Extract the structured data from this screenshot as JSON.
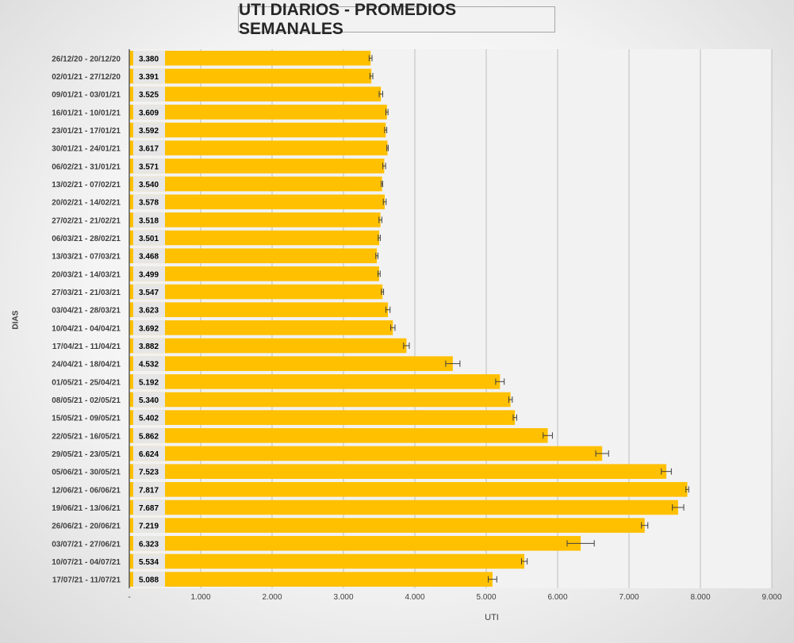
{
  "chart_data": {
    "type": "bar",
    "orientation": "horizontal",
    "title": "UTI DIARIOS - PROMEDIOS SEMANALES",
    "xlabel": "UTI",
    "ylabel": "DIAS",
    "xlim": [
      0,
      9000
    ],
    "x_ticks": [
      "-",
      "1.000",
      "2.000",
      "3.000",
      "4.000",
      "5.000",
      "6.000",
      "7.000",
      "8.000",
      "9.000"
    ],
    "bar_color": "#FFC000",
    "grid": true,
    "legend": "none",
    "categories": [
      "26/12/20 - 20/12/20",
      "02/01/21 - 27/12/20",
      "09/01/21 - 03/01/21",
      "16/01/21 - 10/01/21",
      "23/01/21 - 17/01/21",
      "30/01/21 - 24/01/21",
      "06/02/21 - 31/01/21",
      "13/02/21 - 07/02/21",
      "20/02/21 - 14/02/21",
      "27/02/21 - 21/02/21",
      "06/03/21 - 28/02/21",
      "13/03/21 - 07/03/21",
      "20/03/21 - 14/03/21",
      "27/03/21 - 21/03/21",
      "03/04/21 - 28/03/21",
      "10/04/21 - 04/04/21",
      "17/04/21 - 11/04/21",
      "24/04/21 - 18/04/21",
      "01/05/21 - 25/04/21",
      "08/05/21 - 02/05/21",
      "15/05/21 - 09/05/21",
      "22/05/21 - 16/05/21",
      "29/05/21 - 23/05/21",
      "05/06/21 - 30/05/21",
      "12/06/21 - 06/06/21",
      "19/06/21 - 13/06/21",
      "26/06/21 - 20/06/21",
      "03/07/21 - 27/06/21",
      "10/07/21 - 04/07/21",
      "17/07/21 - 11/07/21"
    ],
    "values": [
      3380,
      3391,
      3525,
      3609,
      3592,
      3617,
      3571,
      3540,
      3578,
      3518,
      3501,
      3468,
      3499,
      3547,
      3623,
      3692,
      3882,
      4532,
      5192,
      5340,
      5402,
      5862,
      6624,
      7523,
      7817,
      7687,
      7219,
      6323,
      5534,
      5088
    ],
    "value_labels": [
      "3.380",
      "3.391",
      "3.525",
      "3.609",
      "3.592",
      "3.617",
      "3.571",
      "3.540",
      "3.578",
      "3.518",
      "3.501",
      "3.468",
      "3.499",
      "3.547",
      "3.623",
      "3.692",
      "3.882",
      "4.532",
      "5.192",
      "5.340",
      "5.402",
      "5.862",
      "6.624",
      "7.523",
      "7.817",
      "7.687",
      "7.219",
      "6.323",
      "5.534",
      "5.088"
    ],
    "error_bars": [
      20,
      20,
      25,
      15,
      15,
      10,
      20,
      10,
      20,
      20,
      15,
      15,
      15,
      15,
      30,
      30,
      40,
      100,
      60,
      25,
      25,
      65,
      90,
      70,
      20,
      80,
      45,
      190,
      40,
      60
    ]
  }
}
